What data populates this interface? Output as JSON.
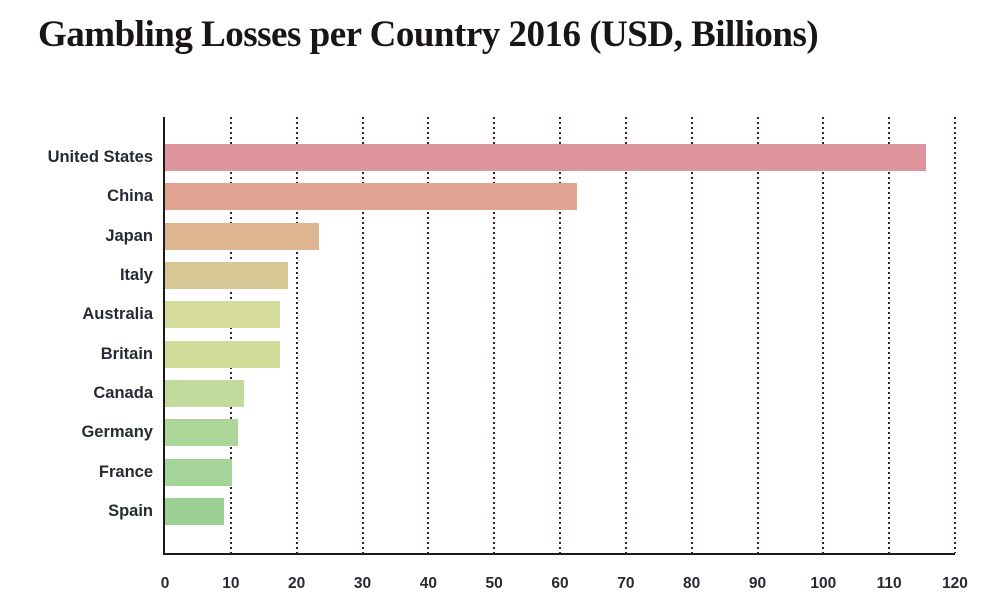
{
  "title": "Gambling Losses per Country 2016 (USD, Billions)",
  "chart_data": {
    "type": "bar",
    "orientation": "horizontal",
    "title": "Gambling Losses per Country 2016 (USD, Billions)",
    "categories": [
      "United States",
      "China",
      "Japan",
      "Italy",
      "Australia",
      "Britain",
      "Canada",
      "Germany",
      "France",
      "Spain"
    ],
    "values": [
      115.6,
      62.6,
      23.4,
      18.7,
      17.4,
      17.4,
      12.0,
      11.1,
      10.2,
      8.9
    ],
    "bar_colors": [
      "#dd949c",
      "#e0a392",
      "#ddb691",
      "#d7c794",
      "#d6dd9c",
      "#d3db98",
      "#c2da9c",
      "#add79a",
      "#a4d497",
      "#9cd195"
    ],
    "xlabel": "",
    "ylabel": "",
    "xlim": [
      0,
      120
    ],
    "xticks": [
      0,
      10,
      20,
      30,
      40,
      50,
      60,
      70,
      80,
      90,
      100,
      110,
      120
    ],
    "grid": "vertical-dotted",
    "legend": "none",
    "gridline_color": "#4a1733",
    "axis_color": "#1b1b1b",
    "label_color": "#262a33",
    "title_color": "#191517",
    "background": "#ffffff"
  }
}
